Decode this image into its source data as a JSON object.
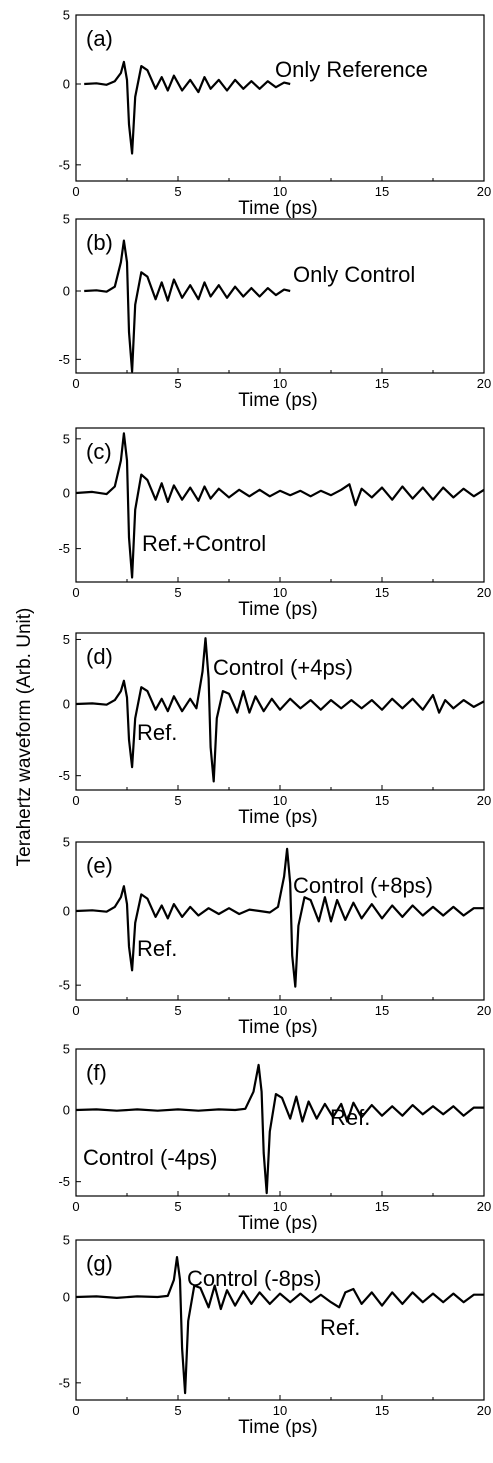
{
  "figure": {
    "ylabel": "Terahertz waveform (Arb. Unit)"
  },
  "chart_data": [
    {
      "type": "line",
      "panel": "(a)",
      "xlabel": "Time (ps)",
      "xlim": [
        0,
        20
      ],
      "ylim": [
        -6,
        5
      ],
      "xticks": [
        "0",
        "5",
        "10",
        "15",
        "20"
      ],
      "yticks": [
        "5",
        "0",
        "-5"
      ],
      "annotations": [
        "Only Reference"
      ],
      "series": [
        {
          "x": [
            0.4,
            1.0,
            1.5,
            1.9,
            2.2,
            2.35,
            2.5,
            2.6,
            2.75,
            2.9,
            3.2,
            3.5,
            3.9,
            4.2,
            4.5,
            4.8,
            5.2,
            5.6,
            6.0,
            6.3,
            6.6,
            7.0,
            7.4,
            7.8,
            8.2,
            8.6,
            9.0,
            9.4,
            9.8,
            10.2,
            10.5
          ],
          "y": [
            0.0,
            0.05,
            -0.05,
            0.2,
            0.8,
            1.6,
            0.3,
            -2.5,
            -4.3,
            -0.8,
            1.3,
            1.0,
            -0.3,
            0.5,
            -0.4,
            0.6,
            -0.4,
            0.3,
            -0.5,
            0.5,
            -0.3,
            0.3,
            -0.4,
            0.3,
            -0.3,
            0.2,
            -0.3,
            0.2,
            -0.2,
            0.1,
            0.0
          ]
        }
      ]
    },
    {
      "type": "line",
      "panel": "(b)",
      "xlabel": "Time (ps)",
      "xlim": [
        0,
        20
      ],
      "ylim": [
        -6,
        5
      ],
      "xticks": [
        "0",
        "5",
        "10",
        "15",
        "20"
      ],
      "yticks": [
        "5",
        "0",
        "-5"
      ],
      "annotations": [
        "Only Control"
      ],
      "series": [
        {
          "x": [
            0.4,
            1.0,
            1.5,
            1.9,
            2.2,
            2.35,
            2.5,
            2.6,
            2.75,
            2.9,
            3.2,
            3.5,
            3.9,
            4.2,
            4.5,
            4.8,
            5.2,
            5.6,
            6.0,
            6.3,
            6.6,
            7.0,
            7.4,
            7.8,
            8.2,
            8.6,
            9.0,
            9.4,
            9.8,
            10.2,
            10.5
          ],
          "y": [
            0.0,
            0.05,
            -0.05,
            0.3,
            2.0,
            3.5,
            2.0,
            -3.0,
            -5.9,
            -1.0,
            1.3,
            1.0,
            -0.6,
            0.6,
            -0.7,
            0.8,
            -0.5,
            0.4,
            -0.6,
            0.6,
            -0.4,
            0.4,
            -0.5,
            0.3,
            -0.4,
            0.2,
            -0.4,
            0.2,
            -0.3,
            0.1,
            0.0
          ]
        }
      ]
    },
    {
      "type": "line",
      "panel": "(c)",
      "xlabel": "Time (ps)",
      "xlim": [
        0,
        20
      ],
      "ylim": [
        -8,
        6
      ],
      "xticks": [
        "0",
        "5",
        "10",
        "15",
        "20"
      ],
      "yticks": [
        "5",
        "0",
        "-5"
      ],
      "annotations": [
        "Ref.+Control"
      ],
      "series": [
        {
          "x": [
            0.0,
            0.8,
            1.5,
            1.9,
            2.2,
            2.35,
            2.5,
            2.6,
            2.75,
            2.9,
            3.2,
            3.5,
            3.9,
            4.2,
            4.5,
            4.8,
            5.2,
            5.6,
            6.0,
            6.3,
            6.6,
            7.0,
            7.5,
            8.0,
            8.5,
            9.0,
            9.5,
            10.0,
            10.5,
            11.0,
            11.5,
            12.0,
            12.5,
            13.0,
            13.4,
            13.7,
            14.0,
            14.5,
            15.0,
            15.5,
            16.0,
            16.5,
            17.0,
            17.5,
            18.0,
            18.5,
            19.0,
            19.5,
            20.0
          ],
          "y": [
            0.0,
            0.1,
            -0.1,
            0.6,
            3.0,
            5.5,
            3.0,
            -4.0,
            -7.6,
            -1.5,
            1.7,
            1.2,
            -0.6,
            0.9,
            -0.8,
            0.7,
            -0.6,
            0.5,
            -0.7,
            0.6,
            -0.5,
            0.4,
            -0.4,
            0.3,
            -0.3,
            0.3,
            -0.3,
            0.2,
            -0.2,
            0.2,
            -0.3,
            0.2,
            -0.2,
            0.3,
            0.8,
            -1.1,
            0.4,
            -0.4,
            0.5,
            -0.6,
            0.6,
            -0.5,
            0.5,
            -0.6,
            0.5,
            -0.4,
            0.4,
            -0.3,
            0.3
          ]
        }
      ]
    },
    {
      "type": "line",
      "panel": "(d)",
      "xlabel": "Time (ps)",
      "xlim": [
        0,
        20
      ],
      "ylim": [
        -6,
        5.5
      ],
      "xticks": [
        "0",
        "5",
        "10",
        "15",
        "20"
      ],
      "yticks": [
        "5",
        "0",
        "-5"
      ],
      "annotations": [
        "Control (+4ps)",
        "Ref."
      ],
      "series": [
        {
          "x": [
            0.0,
            0.8,
            1.5,
            1.9,
            2.2,
            2.35,
            2.5,
            2.6,
            2.75,
            2.9,
            3.2,
            3.5,
            3.9,
            4.2,
            4.5,
            4.8,
            5.2,
            5.6,
            5.9,
            6.2,
            6.35,
            6.5,
            6.6,
            6.75,
            6.9,
            7.2,
            7.5,
            7.9,
            8.2,
            8.5,
            8.8,
            9.2,
            9.6,
            10.0,
            10.5,
            11.0,
            11.5,
            12.0,
            12.5,
            13.0,
            13.5,
            14.0,
            14.5,
            15.0,
            15.5,
            16.0,
            16.5,
            17.0,
            17.5,
            17.8,
            18.1,
            18.5,
            19.0,
            19.5,
            20.0
          ],
          "y": [
            0.0,
            0.05,
            -0.05,
            0.3,
            1.0,
            1.8,
            0.5,
            -2.5,
            -4.4,
            -1.0,
            1.3,
            1.0,
            -0.4,
            0.4,
            -0.5,
            0.6,
            -0.5,
            0.4,
            -0.3,
            2.5,
            5.1,
            2.0,
            -3.0,
            -5.4,
            -1.0,
            1.0,
            0.8,
            -0.6,
            1.0,
            -0.6,
            0.6,
            -0.5,
            0.4,
            -0.4,
            0.4,
            -0.3,
            0.3,
            -0.4,
            0.3,
            -0.3,
            0.3,
            -0.3,
            0.3,
            -0.4,
            0.4,
            -0.3,
            0.4,
            -0.4,
            0.7,
            -0.6,
            0.3,
            -0.3,
            0.3,
            -0.2,
            0.2
          ]
        }
      ]
    },
    {
      "type": "line",
      "panel": "(e)",
      "xlabel": "Time (ps)",
      "xlim": [
        0,
        20
      ],
      "ylim": [
        -6,
        5
      ],
      "xticks": [
        "0",
        "5",
        "10",
        "15",
        "20"
      ],
      "yticks": [
        "5",
        "0",
        "-5"
      ],
      "annotations": [
        "Control (+8ps)",
        "Ref."
      ],
      "series": [
        {
          "x": [
            0.0,
            0.8,
            1.5,
            1.9,
            2.2,
            2.35,
            2.5,
            2.6,
            2.75,
            2.9,
            3.2,
            3.5,
            3.9,
            4.2,
            4.5,
            4.8,
            5.2,
            5.6,
            6.0,
            6.5,
            7.0,
            7.5,
            8.0,
            8.5,
            9.0,
            9.5,
            9.9,
            10.2,
            10.35,
            10.5,
            10.6,
            10.75,
            10.9,
            11.2,
            11.5,
            11.9,
            12.2,
            12.5,
            12.8,
            13.2,
            13.6,
            14.0,
            14.5,
            15.0,
            15.5,
            16.0,
            16.5,
            17.0,
            17.5,
            18.0,
            18.5,
            19.0,
            19.5,
            20.0
          ],
          "y": [
            0.0,
            0.05,
            -0.05,
            0.3,
            1.0,
            1.8,
            0.5,
            -2.4,
            -4.0,
            -0.8,
            1.2,
            0.9,
            -0.4,
            0.4,
            -0.5,
            0.5,
            -0.4,
            0.3,
            -0.3,
            0.2,
            -0.2,
            0.2,
            -0.2,
            0.1,
            0.0,
            -0.1,
            0.3,
            2.5,
            4.5,
            2.0,
            -3.0,
            -5.1,
            -1.0,
            1.0,
            0.8,
            -0.7,
            1.0,
            -0.7,
            0.8,
            -0.6,
            0.6,
            -0.5,
            0.5,
            -0.5,
            0.4,
            -0.4,
            0.4,
            -0.3,
            0.3,
            -0.3,
            0.3,
            -0.3,
            0.2,
            0.2
          ]
        }
      ]
    },
    {
      "type": "line",
      "panel": "(f)",
      "xlabel": "Time (ps)",
      "xlim": [
        0,
        20
      ],
      "ylim": [
        -6,
        5
      ],
      "xticks": [
        "0",
        "5",
        "10",
        "15",
        "20"
      ],
      "yticks": [
        "5",
        "0",
        "-5"
      ],
      "annotations": [
        "Control (-4ps)",
        "Ref."
      ],
      "series": [
        {
          "x": [
            0.0,
            1.0,
            2.0,
            3.0,
            4.0,
            5.0,
            6.0,
            7.0,
            7.8,
            8.3,
            8.7,
            8.95,
            9.1,
            9.2,
            9.35,
            9.5,
            9.8,
            10.1,
            10.5,
            10.8,
            11.1,
            11.4,
            11.8,
            12.2,
            12.6,
            13.0,
            13.3,
            13.6,
            14.0,
            14.5,
            15.0,
            15.5,
            16.0,
            16.5,
            17.0,
            17.5,
            18.0,
            18.5,
            19.0,
            19.5,
            20.0
          ],
          "y": [
            0.0,
            0.05,
            -0.05,
            0.05,
            -0.05,
            0.05,
            -0.05,
            0.05,
            0.0,
            0.1,
            1.5,
            3.7,
            1.5,
            -3.0,
            -5.8,
            -1.5,
            1.3,
            1.0,
            -0.6,
            1.1,
            -0.8,
            0.7,
            -0.6,
            0.5,
            -0.5,
            0.5,
            -0.8,
            0.6,
            -0.5,
            0.4,
            -0.4,
            0.3,
            -0.4,
            0.4,
            -0.3,
            0.3,
            -0.3,
            0.3,
            -0.4,
            0.2,
            0.2
          ]
        }
      ]
    },
    {
      "type": "line",
      "panel": "(g)",
      "xlabel": "Time (ps)",
      "xlim": [
        0,
        20
      ],
      "ylim": [
        -6,
        5
      ],
      "xticks": [
        "0",
        "5",
        "10",
        "15",
        "20"
      ],
      "yticks": [
        "5",
        "0",
        "-5"
      ],
      "annotations": [
        "Control (-8ps)",
        "Ref."
      ],
      "series": [
        {
          "x": [
            0.0,
            1.0,
            2.0,
            3.0,
            4.0,
            4.5,
            4.8,
            4.95,
            5.1,
            5.2,
            5.35,
            5.5,
            5.8,
            6.1,
            6.5,
            6.8,
            7.1,
            7.4,
            7.8,
            8.2,
            8.6,
            9.0,
            9.5,
            10.0,
            10.5,
            11.0,
            11.5,
            12.0,
            12.5,
            12.9,
            13.2,
            13.6,
            14.0,
            14.5,
            15.0,
            15.5,
            16.0,
            16.5,
            17.0,
            17.5,
            18.0,
            18.5,
            19.0,
            19.5,
            20.0
          ],
          "y": [
            0.0,
            0.05,
            -0.05,
            0.05,
            0.0,
            0.1,
            1.5,
            3.5,
            1.5,
            -3.0,
            -5.6,
            -1.4,
            1.0,
            0.8,
            -0.6,
            1.0,
            -0.7,
            0.6,
            -0.5,
            0.5,
            -0.4,
            0.4,
            -0.4,
            0.3,
            -0.3,
            0.3,
            -0.3,
            0.2,
            -0.3,
            -0.6,
            0.4,
            0.7,
            -0.4,
            0.4,
            -0.5,
            0.4,
            -0.4,
            0.4,
            -0.3,
            0.3,
            -0.3,
            0.3,
            -0.3,
            0.2,
            0.2
          ]
        }
      ]
    }
  ]
}
